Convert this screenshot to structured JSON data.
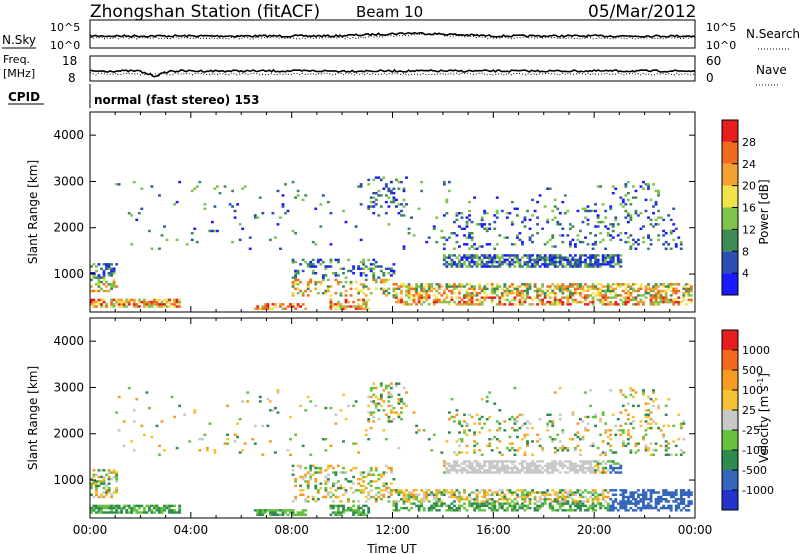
{
  "header": {
    "title": "Zhongshan Station (fitACF)",
    "beam": "Beam 10",
    "date": "05/Mar/2012"
  },
  "nsky_panel": {
    "left_label": "N.Sky",
    "right_label": "N.Search",
    "left_ticks": [
      "10^5",
      "10^0"
    ],
    "right_ticks": [
      "10^5",
      "10^0"
    ]
  },
  "freq_panel": {
    "left_label_line1": "Freq.",
    "left_label_line2": "[MHz]",
    "right_label": "Nave",
    "left_ticks": [
      "18",
      "8"
    ],
    "right_ticks": [
      "60",
      "0"
    ]
  },
  "cpid": {
    "label": "CPID",
    "text": "normal (fast stereo) 153"
  },
  "chart_data": [
    {
      "type": "heatmap",
      "panel": "power",
      "xlabel": "",
      "ylabel": "Slant Range [km]",
      "ylim": [
        180,
        4500
      ],
      "y_ticks": [
        1000,
        2000,
        3000,
        4000
      ],
      "colorbar": {
        "label": "Power [dB]",
        "ticks": [
          "4",
          "8",
          "12",
          "16",
          "20",
          "24",
          "28"
        ],
        "colors": [
          "#1a1aff",
          "#2b4fb0",
          "#3f8a55",
          "#7fc44a",
          "#f2e24a",
          "#f5a033",
          "#f26a1e",
          "#e61e1e"
        ]
      }
    },
    {
      "type": "heatmap",
      "panel": "velocity",
      "xlabel": "Time UT",
      "ylabel": "Slant Range [km]",
      "ylim": [
        180,
        4500
      ],
      "y_ticks": [
        1000,
        2000,
        3000,
        4000
      ],
      "x_ticks": [
        "00:00",
        "04:00",
        "08:00",
        "12:00",
        "16:00",
        "20:00",
        "00:00"
      ],
      "colorbar": {
        "label": "Velocity [m s",
        "label_sup": "-1",
        "label_end": "]",
        "ticks": [
          "1000",
          "500",
          "100",
          "25",
          "-25",
          "-100",
          "-500",
          "-1000"
        ],
        "colors": [
          "#2233cc",
          "#3366bb",
          "#2e8a4e",
          "#66c23e",
          "#c8c8c8",
          "#f5c233",
          "#f59a22",
          "#f26a1a",
          "#e61e1e"
        ]
      }
    }
  ]
}
